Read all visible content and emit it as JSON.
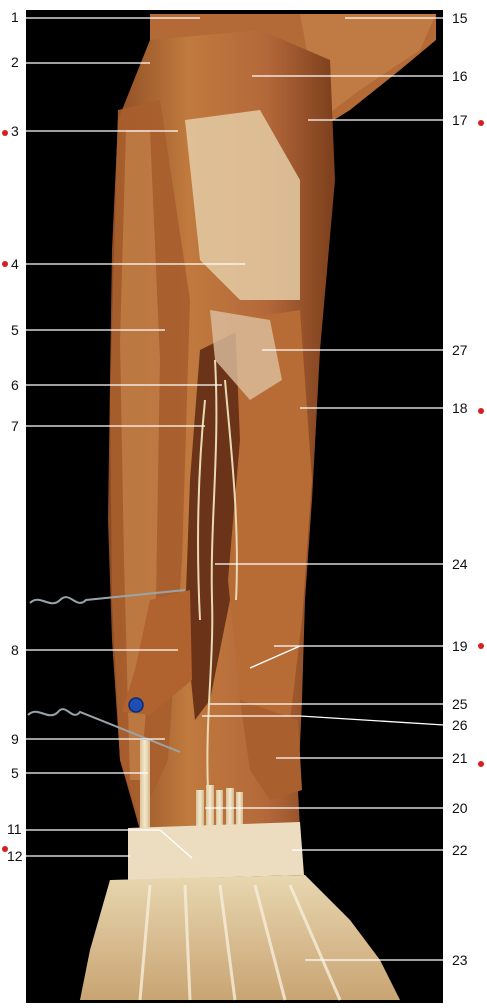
{
  "figure": {
    "background_color": "#000000",
    "muscle_color": "#b0652f",
    "tendon_color": "#efe0bf",
    "leader_line_color": "#ffffff",
    "label_color": "#111111",
    "marker_dot_color": "#d62020",
    "labels_left": [
      {
        "id": "l1",
        "text": "1"
      },
      {
        "id": "l2",
        "text": "2"
      },
      {
        "id": "l3",
        "text": "3"
      },
      {
        "id": "l4",
        "text": "4"
      },
      {
        "id": "l5a",
        "text": "5"
      },
      {
        "id": "l6",
        "text": "6"
      },
      {
        "id": "l7",
        "text": "7"
      },
      {
        "id": "l8",
        "text": "8"
      },
      {
        "id": "l9",
        "text": "9"
      },
      {
        "id": "l5b",
        "text": "5"
      },
      {
        "id": "l11",
        "text": "11"
      },
      {
        "id": "l12",
        "text": "12"
      }
    ],
    "labels_right": [
      {
        "id": "r15",
        "text": "15"
      },
      {
        "id": "r16",
        "text": "16"
      },
      {
        "id": "r17",
        "text": "17"
      },
      {
        "id": "r27",
        "text": "27"
      },
      {
        "id": "r18",
        "text": "18"
      },
      {
        "id": "r24",
        "text": "24"
      },
      {
        "id": "r19",
        "text": "19"
      },
      {
        "id": "r25",
        "text": "25"
      },
      {
        "id": "r26",
        "text": "26"
      },
      {
        "id": "r21",
        "text": "21"
      },
      {
        "id": "r20",
        "text": "20"
      },
      {
        "id": "r22",
        "text": "22"
      },
      {
        "id": "r23",
        "text": "23"
      }
    ]
  }
}
